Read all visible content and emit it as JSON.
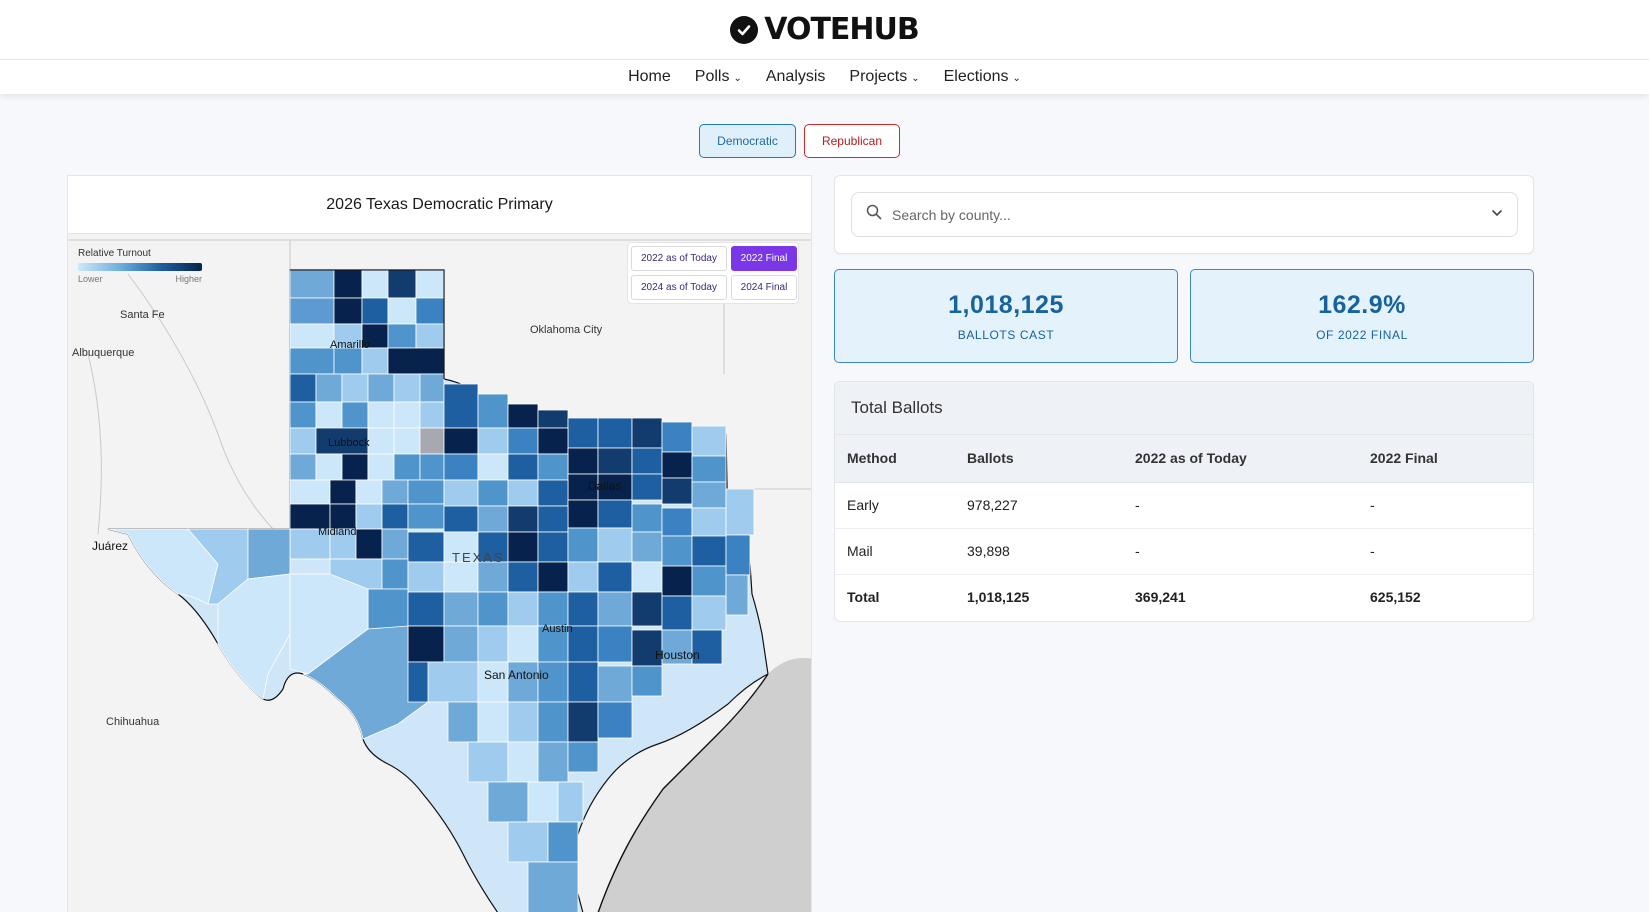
{
  "site": {
    "brand": "VOTEHUB",
    "logo_icon": "check-circle-icon"
  },
  "nav": {
    "items": [
      {
        "label": "Home",
        "dropdown": false
      },
      {
        "label": "Polls",
        "dropdown": true
      },
      {
        "label": "Analysis",
        "dropdown": false
      },
      {
        "label": "Projects",
        "dropdown": true
      },
      {
        "label": "Elections",
        "dropdown": true
      }
    ]
  },
  "party_toggle": {
    "democratic": "Democratic",
    "republican": "Republican",
    "selected": "Democratic"
  },
  "map": {
    "title": "2026 Texas Democratic Primary",
    "legend": {
      "title": "Relative Turnout",
      "low": "Lower",
      "high": "Higher"
    },
    "year_buttons": [
      "2022 as of Today",
      "2022 Final",
      "2024 as of Today",
      "2024 Final"
    ],
    "active_year": "2022 Final",
    "place_labels": {
      "santa_fe": "Santa Fe",
      "albuquerque": "Albuquerque",
      "oklahoma_city": "Oklahoma City",
      "amarillo": "Amarillo",
      "lubbock": "Lubbock",
      "dallas": "Dallas",
      "midland": "Midland",
      "juarez": "Juárez",
      "texas": "TEXAS",
      "austin": "Austin",
      "houston": "Houston",
      "san_antonio": "San Antonio",
      "chihuahua": "Chihuahua"
    },
    "colors": {
      "lightest": "#cde7fa",
      "light": "#9fcbee",
      "mid": "#4f95cc",
      "dark": "#1d5fa0",
      "darkest": "#07234d",
      "no_data": "#a8a8b0"
    }
  },
  "search": {
    "placeholder": "Search by county...",
    "icon": "search-icon"
  },
  "stats": [
    {
      "value": "1,018,125",
      "label": "BALLOTS CAST"
    },
    {
      "value": "162.9%",
      "label": "OF 2022 FINAL"
    }
  ],
  "table": {
    "title": "Total Ballots",
    "headers": [
      "Method",
      "Ballots",
      "2022 as of Today",
      "2022 Final"
    ],
    "rows": [
      [
        "Early",
        "978,227",
        "-",
        "-"
      ],
      [
        "Mail",
        "39,898",
        "-",
        "-"
      ],
      [
        "Total",
        "1,018,125",
        "369,241",
        "625,152"
      ]
    ]
  }
}
